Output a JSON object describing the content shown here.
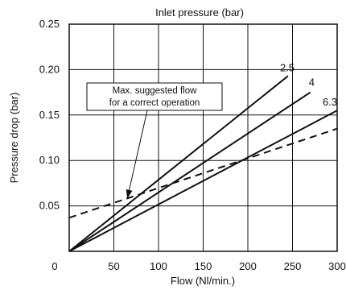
{
  "chart_data": {
    "type": "line",
    "top_label": "Inlet pressure  (bar)",
    "xlabel": "Flow (Nl/min.)",
    "ylabel": "Pressure drop (bar)",
    "xlim": [
      0,
      300
    ],
    "ylim": [
      0,
      0.25
    ],
    "x_ticks": [
      0,
      50,
      100,
      150,
      200,
      250,
      300
    ],
    "x_tick_labels": [
      "0",
      "50",
      "100",
      "150",
      "200",
      "250",
      "300"
    ],
    "y_ticks": [
      0.05,
      0.1,
      0.15,
      0.2,
      0.25
    ],
    "y_tick_labels": [
      "0.05",
      "0.10",
      "0.15",
      "0.20",
      "0.25"
    ],
    "grid": true,
    "series": [
      {
        "name": "2.5",
        "style": "solid",
        "x": [
          0,
          245
        ],
        "y": [
          0,
          0.193
        ]
      },
      {
        "name": "4",
        "style": "solid",
        "x": [
          0,
          270
        ],
        "y": [
          0,
          0.175
        ]
      },
      {
        "name": "6.3",
        "style": "solid",
        "x": [
          0,
          300
        ],
        "y": [
          0,
          0.155
        ]
      },
      {
        "name": "",
        "style": "dashed",
        "x": [
          0,
          300
        ],
        "y": [
          0.037,
          0.135
        ]
      }
    ],
    "annotation": {
      "text_lines": [
        "Max. suggested flow",
        "for a correct operation"
      ],
      "points_to": {
        "x": 65,
        "y": 0.058
      }
    }
  }
}
